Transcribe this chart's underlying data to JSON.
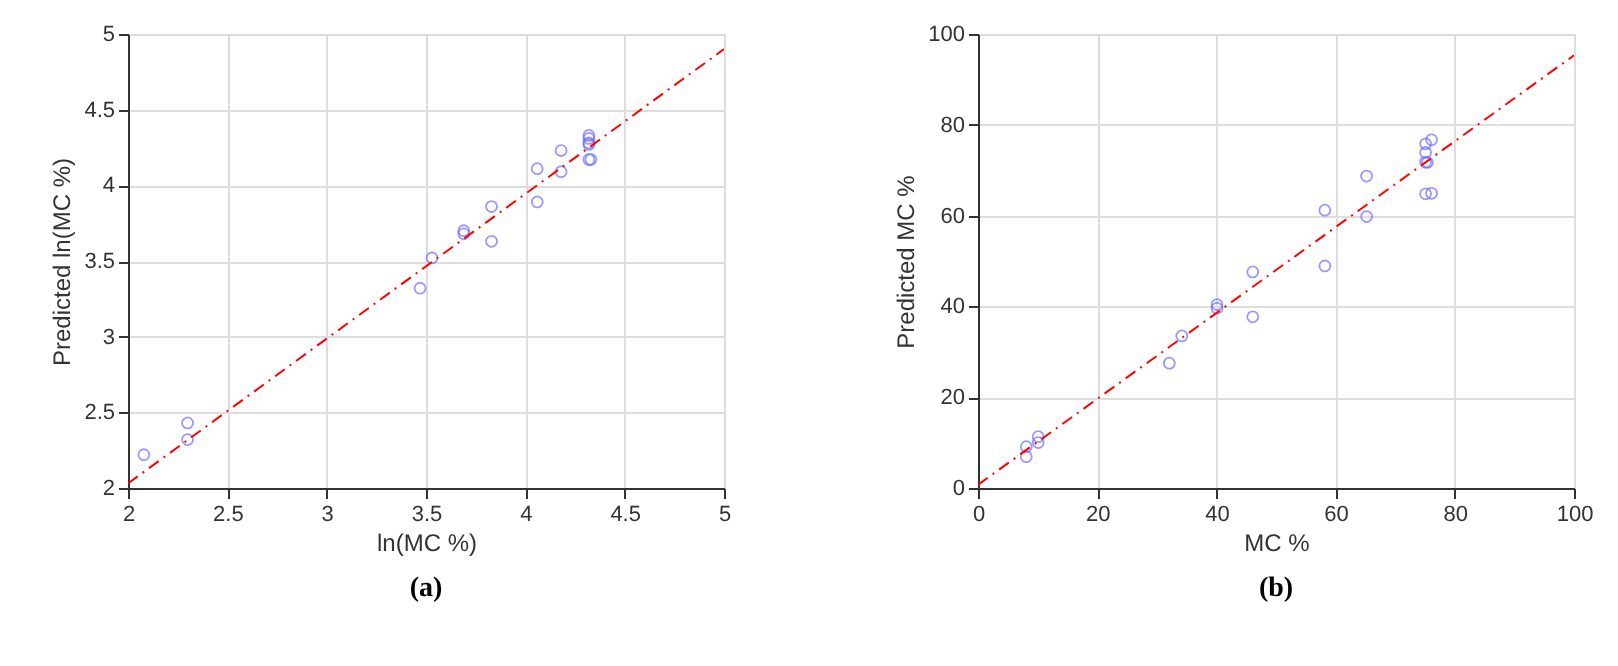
{
  "chart_data": [
    {
      "type": "scatter",
      "title": "(a)",
      "xlabel": "ln(MC %)",
      "ylabel": "Predicted ln(MC %)",
      "xlim": [
        2,
        5
      ],
      "ylim": [
        2,
        5
      ],
      "xticks": [
        2,
        2.5,
        3,
        3.5,
        4,
        4.5,
        5
      ],
      "yticks": [
        2,
        2.5,
        3,
        3.5,
        4,
        4.5,
        5
      ],
      "grid": true,
      "series": [
        {
          "type": "scatter",
          "marker": "circle",
          "color": "#6f6fff",
          "x": [
            2.08,
            2.3,
            2.3,
            3.47,
            3.53,
            3.69,
            3.69,
            3.83,
            3.83,
            4.06,
            4.06,
            4.18,
            4.18,
            4.32,
            4.32,
            4.32,
            4.32,
            4.32,
            4.33
          ],
          "values": [
            2.22,
            2.43,
            2.32,
            3.32,
            3.52,
            3.7,
            3.68,
            3.86,
            3.63,
            4.11,
            3.89,
            4.23,
            4.09,
            4.33,
            4.31,
            4.28,
            4.27,
            4.17,
            4.17
          ]
        },
        {
          "type": "line",
          "color": "#ff0000",
          "line_style": "dashed",
          "x": [
            2,
            5
          ],
          "values": [
            2.03,
            4.9
          ]
        }
      ]
    },
    {
      "type": "scatter",
      "title": "(b)",
      "xlabel": "MC %",
      "ylabel": "Predicted MC %",
      "xlim": [
        0,
        100
      ],
      "ylim": [
        0,
        100
      ],
      "xticks": [
        0,
        20,
        40,
        60,
        80,
        100
      ],
      "yticks": [
        0,
        20,
        40,
        60,
        80,
        100
      ],
      "grid": true,
      "series": [
        {
          "type": "scatter",
          "marker": "circle",
          "color": "#6f6fff",
          "x": [
            8.1,
            8.1,
            10.1,
            10.1,
            32.1,
            34.2,
            40.1,
            40.1,
            46.1,
            46.1,
            58.2,
            58.2,
            65.2,
            65.2,
            75.1,
            76.1,
            75.1,
            75.1,
            75.4,
            75.1,
            76.1
          ],
          "values": [
            9.1,
            6.9,
            11.3,
            10.0,
            27.5,
            33.5,
            40.4,
            39.6,
            47.6,
            37.7,
            61.2,
            48.9,
            68.7,
            59.8,
            75.8,
            76.7,
            73.9,
            71.8,
            71.7,
            64.8,
            64.9
          ]
        },
        {
          "type": "line",
          "color": "#ff0000",
          "line_style": "dashed",
          "x": [
            0,
            100
          ],
          "values": [
            0.7,
            95.3
          ]
        }
      ]
    }
  ]
}
